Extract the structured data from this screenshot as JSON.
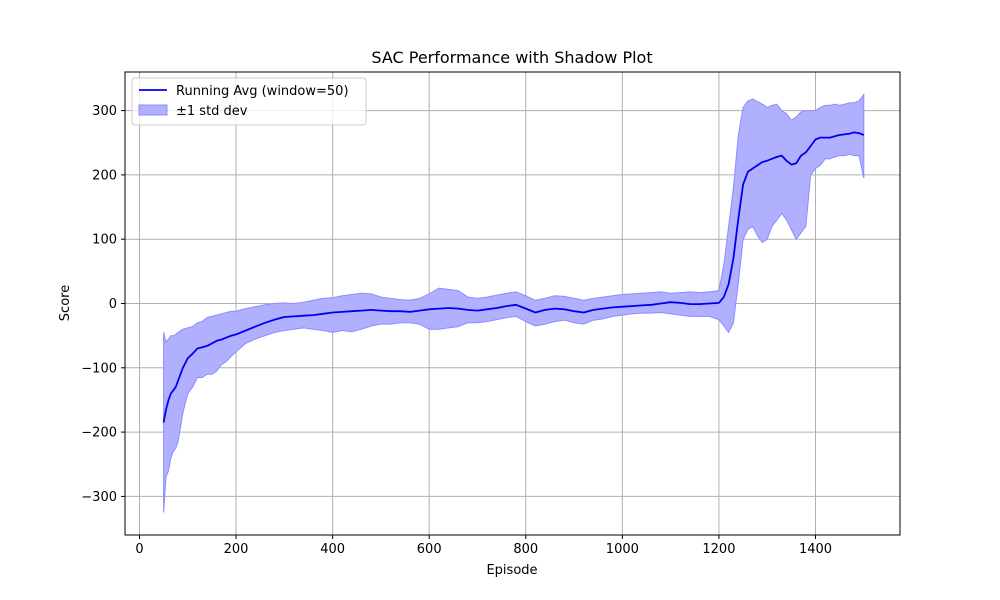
{
  "chart_data": {
    "type": "line",
    "title": "SAC Performance with Shadow Plot",
    "xlabel": "Episode",
    "ylabel": "Score",
    "xlim": [
      -30,
      1575
    ],
    "ylim": [
      -360,
      360
    ],
    "xticks": [
      0,
      200,
      400,
      600,
      800,
      1000,
      1200,
      1400
    ],
    "yticks": [
      -300,
      -200,
      -100,
      0,
      100,
      200,
      300
    ],
    "xtick_labels": [
      "0",
      "200",
      "400",
      "600",
      "800",
      "1000",
      "1200",
      "1400"
    ],
    "ytick_labels": [
      "−300",
      "−200",
      "−100",
      "0",
      "100",
      "200",
      "300"
    ],
    "grid": true,
    "legend_position": "upper-left",
    "colors": {
      "line": "#0000ee",
      "band": "#b0b0ff",
      "band_edge": "#8c8cff",
      "grid": "#b0b0b0"
    },
    "series": [
      {
        "name": "Running Avg (window=50)",
        "x": [
          50,
          55,
          60,
          65,
          70,
          75,
          80,
          90,
          100,
          110,
          120,
          130,
          140,
          150,
          160,
          170,
          180,
          190,
          200,
          220,
          240,
          260,
          280,
          300,
          320,
          340,
          360,
          380,
          400,
          420,
          440,
          460,
          480,
          500,
          520,
          540,
          560,
          580,
          600,
          620,
          640,
          660,
          680,
          700,
          720,
          740,
          760,
          780,
          800,
          820,
          840,
          860,
          880,
          900,
          920,
          940,
          960,
          980,
          1000,
          1020,
          1040,
          1060,
          1080,
          1100,
          1120,
          1140,
          1160,
          1180,
          1200,
          1210,
          1220,
          1230,
          1240,
          1250,
          1260,
          1270,
          1280,
          1290,
          1300,
          1310,
          1320,
          1330,
          1340,
          1350,
          1360,
          1370,
          1380,
          1390,
          1400,
          1410,
          1420,
          1430,
          1440,
          1450,
          1460,
          1470,
          1480,
          1490,
          1500
        ],
        "y": [
          -185,
          -165,
          -150,
          -140,
          -135,
          -130,
          -120,
          -100,
          -85,
          -78,
          -70,
          -68,
          -66,
          -62,
          -58,
          -56,
          -53,
          -50,
          -48,
          -42,
          -36,
          -30,
          -25,
          -21,
          -20,
          -19,
          -18,
          -16,
          -14,
          -13,
          -12,
          -11,
          -10,
          -11,
          -12,
          -12,
          -13,
          -11,
          -9,
          -8,
          -7,
          -8,
          -10,
          -11,
          -9,
          -7,
          -4,
          -2,
          -8,
          -14,
          -10,
          -8,
          -9,
          -12,
          -14,
          -10,
          -8,
          -6,
          -5,
          -4,
          -3,
          -2,
          0,
          2,
          1,
          -1,
          -1,
          0,
          1,
          10,
          30,
          70,
          130,
          185,
          205,
          210,
          215,
          220,
          222,
          225,
          228,
          230,
          222,
          216,
          218,
          230,
          235,
          245,
          255,
          258,
          258,
          258,
          260,
          262,
          263,
          264,
          266,
          265,
          262
        ]
      },
      {
        "name": "±1 std dev",
        "x": [
          50,
          55,
          60,
          65,
          70,
          75,
          80,
          90,
          100,
          110,
          120,
          130,
          140,
          150,
          160,
          170,
          180,
          190,
          200,
          220,
          240,
          260,
          280,
          300,
          320,
          340,
          360,
          380,
          400,
          420,
          440,
          460,
          480,
          500,
          520,
          540,
          560,
          580,
          600,
          620,
          640,
          660,
          680,
          700,
          720,
          740,
          760,
          780,
          800,
          820,
          840,
          860,
          880,
          900,
          920,
          940,
          960,
          980,
          1000,
          1020,
          1040,
          1060,
          1080,
          1100,
          1120,
          1140,
          1160,
          1180,
          1200,
          1210,
          1220,
          1230,
          1240,
          1250,
          1260,
          1270,
          1280,
          1290,
          1300,
          1310,
          1320,
          1330,
          1340,
          1350,
          1360,
          1370,
          1380,
          1390,
          1400,
          1410,
          1420,
          1430,
          1440,
          1450,
          1460,
          1470,
          1480,
          1490,
          1500
        ],
        "lower": [
          -325,
          -270,
          -260,
          -240,
          -230,
          -225,
          -215,
          -170,
          -140,
          -130,
          -115,
          -115,
          -110,
          -110,
          -105,
          -95,
          -90,
          -82,
          -75,
          -62,
          -55,
          -50,
          -45,
          -42,
          -40,
          -38,
          -40,
          -42,
          -45,
          -42,
          -44,
          -40,
          -35,
          -32,
          -32,
          -30,
          -30,
          -32,
          -40,
          -40,
          -38,
          -36,
          -30,
          -30,
          -28,
          -25,
          -22,
          -20,
          -28,
          -35,
          -32,
          -28,
          -26,
          -30,
          -32,
          -26,
          -24,
          -20,
          -18,
          -16,
          -15,
          -15,
          -14,
          -16,
          -18,
          -20,
          -20,
          -20,
          -25,
          -35,
          -45,
          -30,
          30,
          100,
          115,
          120,
          105,
          95,
          100,
          120,
          130,
          140,
          130,
          115,
          100,
          110,
          120,
          200,
          210,
          215,
          225,
          225,
          228,
          230,
          230,
          232,
          230,
          230,
          195
        ],
        "upper": [
          -45,
          -60,
          -55,
          -50,
          -50,
          -48,
          -45,
          -40,
          -38,
          -36,
          -30,
          -28,
          -22,
          -20,
          -18,
          -16,
          -14,
          -12,
          -12,
          -8,
          -5,
          -2,
          0,
          1,
          0,
          2,
          5,
          8,
          9,
          12,
          14,
          16,
          15,
          10,
          8,
          6,
          5,
          8,
          15,
          24,
          22,
          20,
          10,
          8,
          10,
          13,
          16,
          18,
          12,
          5,
          8,
          12,
          11,
          8,
          5,
          8,
          10,
          12,
          14,
          15,
          16,
          17,
          18,
          16,
          17,
          18,
          17,
          18,
          20,
          60,
          120,
          180,
          260,
          305,
          315,
          318,
          314,
          310,
          305,
          308,
          310,
          300,
          295,
          285,
          290,
          298,
          300,
          300,
          300,
          305,
          308,
          308,
          310,
          308,
          310,
          312,
          312,
          315,
          325
        ]
      }
    ]
  }
}
